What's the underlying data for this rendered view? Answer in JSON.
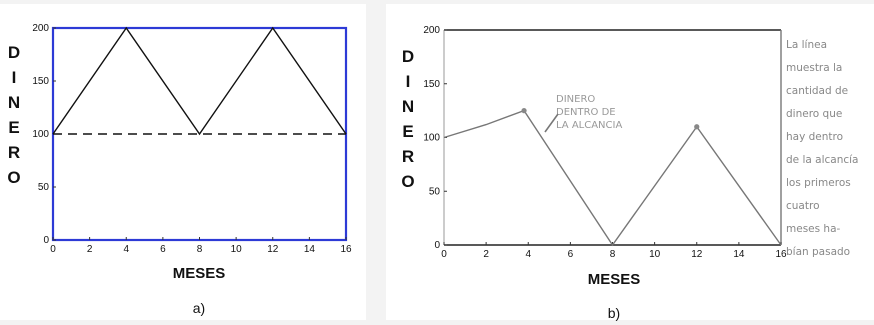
{
  "chart_data": [
    {
      "type": "line",
      "caption": "a)",
      "xlabel": "MESES",
      "ylabel": "DINERO",
      "xlim": [
        0,
        16
      ],
      "ylim": [
        0,
        200
      ],
      "xticks": [
        "0",
        "2",
        "4",
        "6",
        "8",
        "10",
        "12",
        "14",
        "16"
      ],
      "yticks": [
        "0",
        "50",
        "100",
        "150",
        "200"
      ],
      "frame_color": "#2d3ad6",
      "series": [
        {
          "style": "solid",
          "color": "#111111",
          "x": [
            0,
            4,
            8,
            12,
            16
          ],
          "y": [
            100,
            200,
            100,
            200,
            100
          ]
        },
        {
          "style": "dashed",
          "color": "#111111",
          "x": [
            0,
            16
          ],
          "y": [
            100,
            100
          ]
        }
      ]
    },
    {
      "type": "line",
      "caption": "b)",
      "xlabel": "MESES",
      "ylabel": "DINERO",
      "xlim": [
        0,
        16
      ],
      "ylim": [
        0,
        200
      ],
      "xticks": [
        "0",
        "2",
        "4",
        "6",
        "8",
        "10",
        "12",
        "14",
        "16"
      ],
      "yticks": [
        "0",
        "50",
        "100",
        "150",
        "200"
      ],
      "series": [
        {
          "style": "solid",
          "color": "#777777",
          "x": [
            0,
            2,
            3.8,
            8,
            12,
            16
          ],
          "y": [
            100,
            112,
            125,
            0,
            110,
            0
          ]
        }
      ],
      "markers": [
        {
          "x": 3.8,
          "y": 125
        },
        {
          "x": 12,
          "y": 110
        }
      ],
      "annotation": [
        "DINERO",
        "DENTRO DE",
        "LA ALCANCIA"
      ],
      "side_note": [
        "La línea",
        "muestra la",
        "cantidad de",
        "dinero que",
        "hay dentro",
        "de la alcancía",
        "los primeros",
        "cuatro",
        "meses ha-",
        "bían pasado"
      ]
    }
  ]
}
